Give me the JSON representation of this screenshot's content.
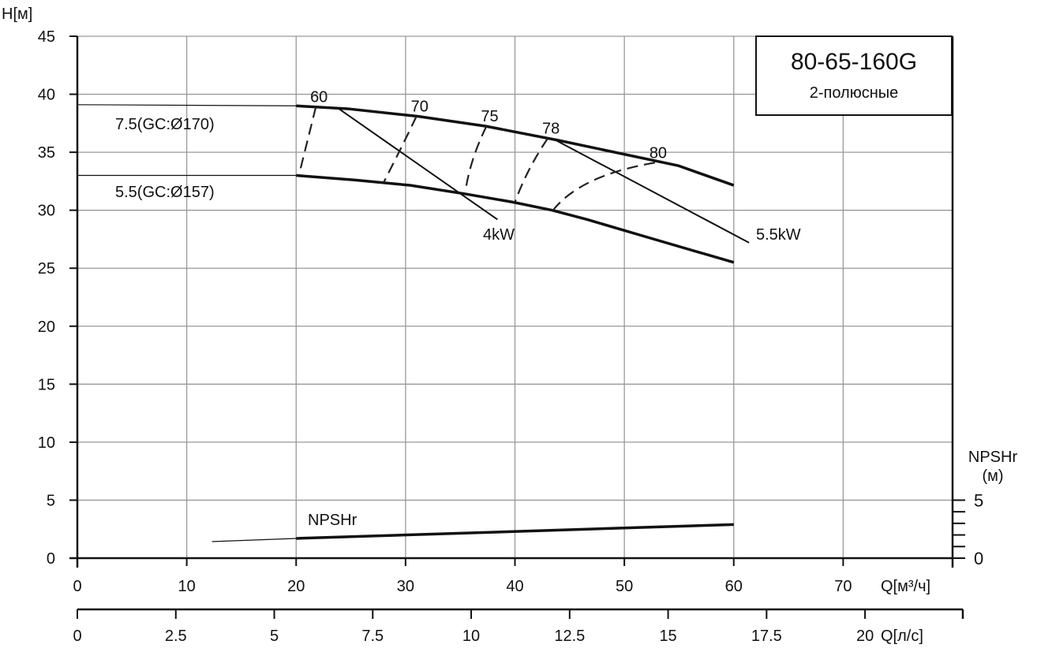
{
  "chart_data": {
    "type": "line",
    "title": "80-65-160G",
    "subtitle": "2-полюсные",
    "ylabel": "H[м]",
    "xlabel": "Q[м³/ч]",
    "x2label": "Q[л/с]",
    "y2label": "NPSHr",
    "y2unit": "(м)",
    "xlim": [
      0,
      80
    ],
    "ylim": [
      0,
      45
    ],
    "y2lim": [
      0,
      5
    ],
    "grid": true,
    "x_ticks": [
      0,
      10,
      20,
      30,
      40,
      50,
      60,
      70
    ],
    "y_ticks": [
      0,
      5,
      10,
      15,
      20,
      25,
      30,
      35,
      40,
      45
    ],
    "x2_ticks": [
      "0",
      "2.5",
      "5",
      "7.5",
      "10",
      "12.5",
      "15",
      "17.5",
      "20"
    ],
    "y2_ticks": [
      "0",
      "5"
    ],
    "series": [
      {
        "name": "7.5(GC:Ø170)",
        "kind": "head",
        "x": [
          0,
          20,
          24.7,
          31.1,
          37.3,
          44.1,
          54.9,
          60
        ],
        "y": [
          39.1,
          39.0,
          38.75,
          38.1,
          37.25,
          36.0,
          33.85,
          32.15
        ]
      },
      {
        "name": "5.5(GC:Ø157)",
        "kind": "head",
        "x": [
          0,
          20,
          25.4,
          30.4,
          35.5,
          39.8,
          43.4,
          46.6,
          52,
          60
        ],
        "y": [
          33.0,
          33.0,
          32.6,
          32.15,
          31.4,
          30.7,
          30.0,
          29.2,
          27.7,
          25.5
        ]
      },
      {
        "name": "4kW",
        "kind": "power",
        "x": [
          23.9,
          38.4
        ],
        "y": [
          38.75,
          29.2
        ]
      },
      {
        "name": "5.5kW",
        "kind": "power",
        "x": [
          43.8,
          61.4
        ],
        "y": [
          36.0,
          27.2
        ]
      },
      {
        "name": "NPSHr",
        "kind": "npsh",
        "x": [
          12.3,
          20,
          60
        ],
        "y": [
          1.43,
          1.7,
          2.9
        ]
      }
    ],
    "efficiency": [
      {
        "name": "60",
        "x": [
          21.8,
          20.3
        ],
        "y": [
          38.9,
          33.2
        ]
      },
      {
        "name": "70",
        "x": [
          31.0,
          29.5,
          28.0
        ],
        "y": [
          38.1,
          35.2,
          32.4
        ]
      },
      {
        "name": "75",
        "x": [
          37.4,
          36.2,
          35.5
        ],
        "y": [
          37.25,
          34.5,
          31.8
        ]
      },
      {
        "name": "78",
        "x": [
          43.0,
          41.3,
          40.0
        ],
        "y": [
          36.2,
          33.5,
          30.7
        ]
      },
      {
        "name": "80",
        "x": [
          52.8,
          47.0,
          43.4
        ],
        "y": [
          34.1,
          32.5,
          29.9
        ]
      }
    ]
  }
}
